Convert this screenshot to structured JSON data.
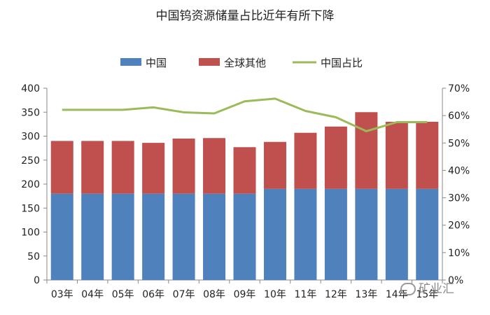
{
  "chart_data": {
    "type": "bar",
    "title": "中国钨资源储量占比近年有所下降",
    "categories": [
      "03年",
      "04年",
      "05年",
      "06年",
      "07年",
      "08年",
      "09年",
      "10年",
      "11年",
      "12年",
      "13年",
      "14年",
      "15年"
    ],
    "stacked": true,
    "series": [
      {
        "name": "中国",
        "type": "bar",
        "axis": "left",
        "color": "#4F81BD",
        "values": [
          180,
          180,
          180,
          180,
          180,
          180,
          180,
          190,
          190,
          190,
          190,
          190,
          190
        ]
      },
      {
        "name": "全球其他",
        "type": "bar",
        "axis": "left",
        "color": "#C0504D",
        "values": [
          110,
          110,
          110,
          106,
          115,
          116,
          97,
          98,
          117,
          130,
          160,
          140,
          140
        ]
      },
      {
        "name": "中国占比",
        "type": "line",
        "axis": "right",
        "color": "#9BBB59",
        "values": [
          0.621,
          0.621,
          0.621,
          0.63,
          0.612,
          0.608,
          0.652,
          0.662,
          0.617,
          0.594,
          0.543,
          0.576,
          0.576
        ]
      }
    ],
    "ylim_left": [
      0,
      400
    ],
    "yticks_left": [
      "0",
      "50",
      "100",
      "150",
      "200",
      "250",
      "300",
      "350",
      "400"
    ],
    "ylim_right": [
      0,
      0.7
    ],
    "yticks_right": [
      "0%",
      "10%",
      "20%",
      "30%",
      "40%",
      "50%",
      "60%",
      "70%"
    ],
    "legend_position": "top"
  },
  "watermark": {
    "text": "矿业汇",
    "icon": "wechat-icon"
  }
}
